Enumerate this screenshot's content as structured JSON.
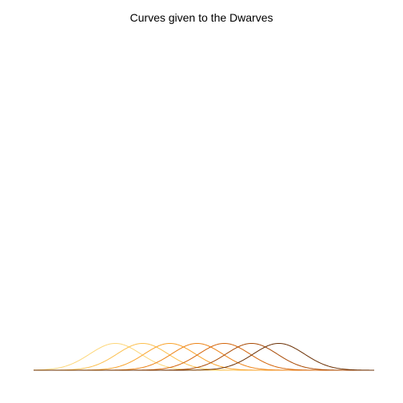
{
  "chart_data": {
    "type": "line",
    "title": "Curves given to the Dwarves",
    "xlabel": "",
    "ylabel": "",
    "grid": false,
    "legend": "none",
    "xlim": [
      0,
      100
    ],
    "ylim": [
      0,
      1
    ],
    "curve": {
      "kind": "gaussian",
      "amplitude": 0.08,
      "sigma": 7.5
    },
    "series": [
      {
        "center": 24,
        "color": "#fdd77a"
      },
      {
        "center": 32,
        "color": "#fcc04f"
      },
      {
        "center": 40,
        "color": "#f9a32c"
      },
      {
        "center": 48,
        "color": "#ed8317"
      },
      {
        "center": 56,
        "color": "#d4650a"
      },
      {
        "center": 64,
        "color": "#a94a04"
      },
      {
        "center": 72,
        "color": "#6b3004"
      }
    ]
  }
}
